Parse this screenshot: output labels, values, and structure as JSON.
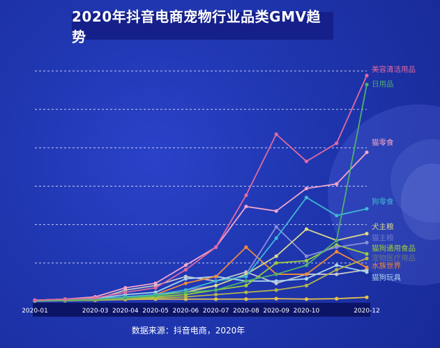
{
  "title": "2020年抖音电商宠物行业品类GMV趋势",
  "source": "数据来源：抖音电商，2020年",
  "chart_data": {
    "type": "line",
    "title": "2020年抖音电商宠物行业品类GMV趋势",
    "x": [
      "2020-01",
      "2020-02",
      "2020-03",
      "2020-04",
      "2020-05",
      "2020-06",
      "2020-07",
      "2020-08",
      "2020-09",
      "2020-10",
      "2020-11",
      "2020-12"
    ],
    "x_tick_labels": [
      "2020-01",
      "2020-03",
      "2020-04",
      "2020-05",
      "2020-06",
      "2020-07",
      "2020-08",
      "2020-09",
      "2020-10",
      "2020-12"
    ],
    "ylim": [
      0,
      100
    ],
    "gridlines": [
      0,
      17,
      34,
      51,
      68,
      85,
      102
    ],
    "grid": "horizontal-dashed",
    "legend": "end-of-line labels",
    "series": [
      {
        "name": "美容清洁用品",
        "color": "#e06aa0",
        "values": [
          0.5,
          1,
          1.5,
          4,
          6,
          14,
          24,
          47,
          74,
          62,
          70,
          100
        ]
      },
      {
        "name": "日用品",
        "color": "#4fb06f",
        "values": [
          0.3,
          0.5,
          0.8,
          1.5,
          2.5,
          4,
          5,
          9,
          12,
          16,
          27,
          96
        ]
      },
      {
        "name": "猫零食",
        "color": "#f2a6c8",
        "values": [
          0.5,
          1,
          2,
          6,
          8,
          16,
          24,
          42,
          40,
          50,
          52,
          66
        ]
      },
      {
        "name": "狗零食",
        "color": "#3fb7d4",
        "values": [
          0.2,
          0.5,
          1,
          2,
          3,
          5,
          9,
          11,
          28,
          46,
          38,
          41
        ]
      },
      {
        "name": "犬主粮",
        "color": "#d9d98a",
        "values": [
          0.2,
          0.5,
          1,
          1.5,
          3,
          4,
          7,
          12,
          20,
          32,
          27,
          30
        ]
      },
      {
        "name": "猫主粮",
        "color": "#8a8fd8",
        "values": [
          0.2,
          0.5,
          1,
          2,
          3,
          5,
          7,
          12,
          33,
          20,
          24,
          26
        ]
      },
      {
        "name": "猫狗通用食品",
        "color": "#9ccc3c",
        "values": [
          0.2,
          0.5,
          0.8,
          1.5,
          2,
          3,
          5,
          7,
          17,
          18,
          25,
          21
        ]
      },
      {
        "name": "宠物医疗用品",
        "color": "#b4b44c",
        "values": [
          0.1,
          0.3,
          0.5,
          1,
          1.5,
          2,
          3,
          4,
          5,
          7,
          14,
          19
        ]
      },
      {
        "name": "水族世界",
        "color": "#f08a3a",
        "values": [
          0.2,
          0.5,
          1,
          2,
          3,
          8,
          11,
          24,
          12,
          12,
          22,
          15
        ]
      },
      {
        "name": "猫狗玩具",
        "color": "#a9d4ec",
        "values": [
          0.5,
          1,
          1.2,
          3,
          4,
          10,
          11,
          9,
          9,
          10,
          16,
          13
        ]
      },
      {
        "name": "",
        "color": "#c8c8c8",
        "values": [
          0.3,
          0.5,
          0.8,
          5,
          7,
          11,
          9,
          13,
          8,
          12,
          12,
          14
        ]
      },
      {
        "name": "",
        "color": "#e8c34a",
        "values": [
          0.2,
          0.3,
          0.5,
          0.8,
          1,
          1,
          1,
          1,
          1.2,
          1,
          1.2,
          1.8
        ]
      }
    ]
  }
}
